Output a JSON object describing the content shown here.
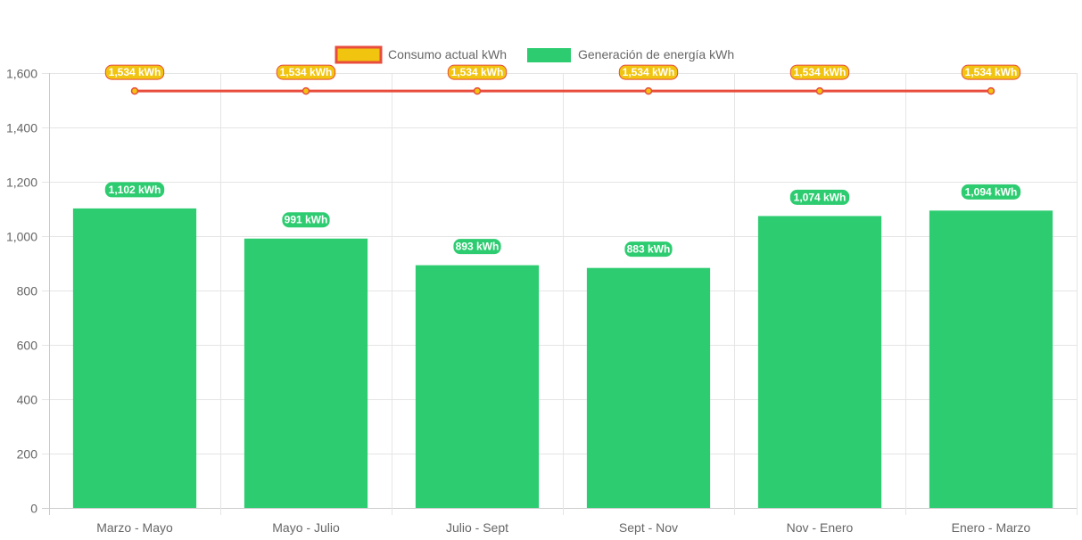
{
  "chart_data": {
    "type": "bar",
    "categories": [
      "Marzo - Mayo",
      "Mayo - Julio",
      "Julio - Sept",
      "Sept - Nov",
      "Nov - Enero",
      "Enero - Marzo"
    ],
    "series": [
      {
        "name": "Consumo actual kWh",
        "type": "line",
        "values": [
          1534,
          1534,
          1534,
          1534,
          1534,
          1534
        ],
        "labels": [
          "1,534 kWh",
          "1,534 kWh",
          "1,534 kWh",
          "1,534 kWh",
          "1,534 kWh",
          "1,534 kWh"
        ],
        "color": "#e74c3c",
        "fill_color": "#f1c40f"
      },
      {
        "name": "Generación de energía kWh",
        "type": "bar",
        "values": [
          1102,
          991,
          893,
          883,
          1074,
          1094
        ],
        "labels": [
          "1,102 kWh",
          "991 kWh",
          "893 kWh",
          "883 kWh",
          "1,074 kWh",
          "1,094 kWh"
        ],
        "color": "#2ecc71"
      }
    ],
    "ylim": [
      0,
      1600
    ],
    "yticks": [
      "0",
      "200",
      "400",
      "600",
      "800",
      "1,000",
      "1,200",
      "1,400",
      "1,600"
    ],
    "grid": true,
    "legend_position": "top"
  }
}
